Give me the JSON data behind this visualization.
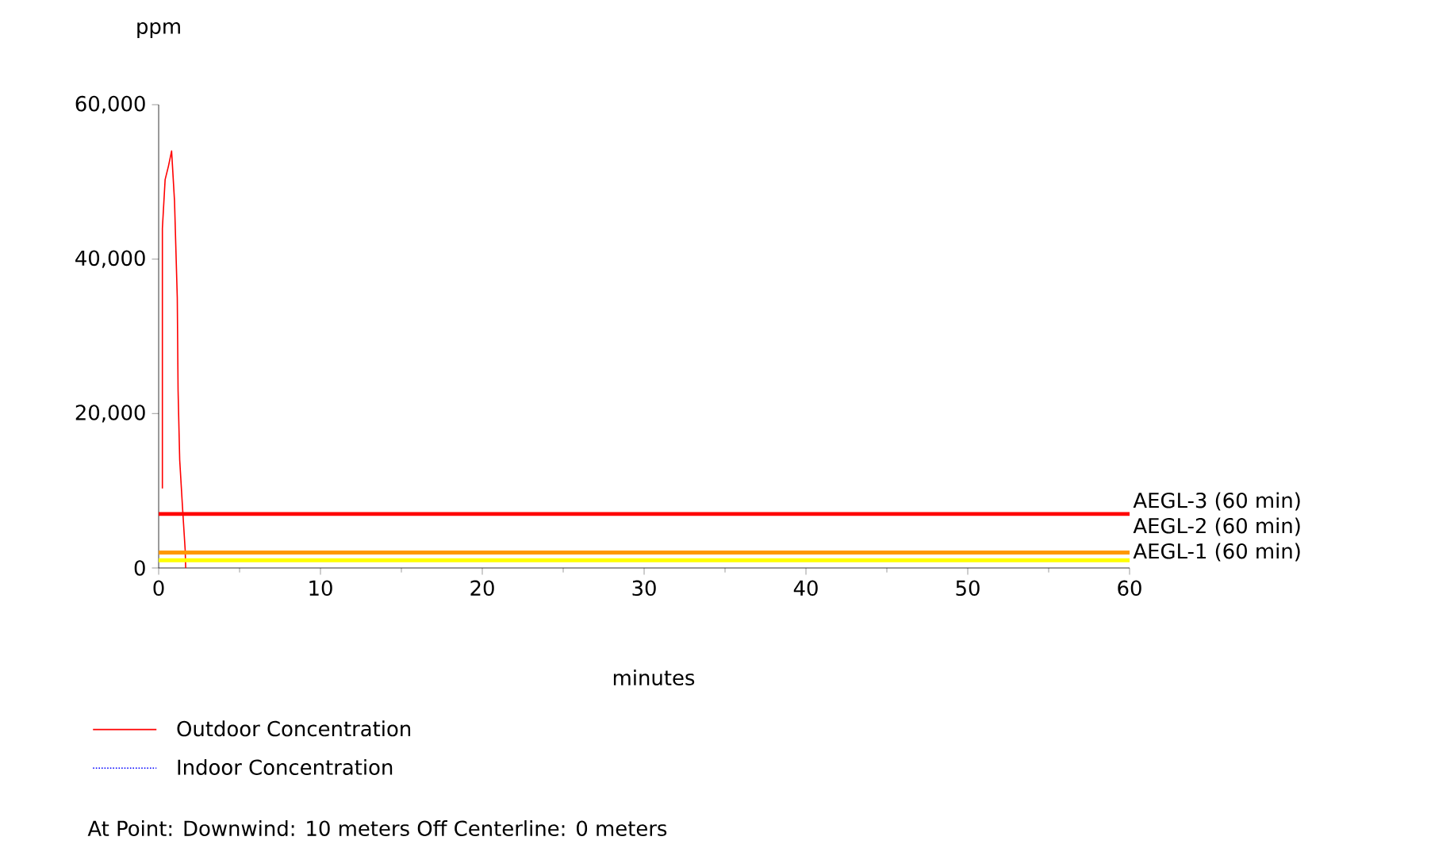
{
  "chart_data": {
    "type": "line",
    "xlabel": "minutes",
    "ylabel": "ppm",
    "xlim": [
      0,
      60
    ],
    "xticks": [
      0,
      10,
      20,
      30,
      40,
      50,
      60
    ],
    "ylim": [
      0,
      60000
    ],
    "yticks": [
      {
        "value": 0,
        "label": "0"
      },
      {
        "value": 20000,
        "label": "20,000"
      },
      {
        "value": 40000,
        "label": "40,000"
      },
      {
        "value": 60000,
        "label": "60,000"
      }
    ],
    "series": [
      {
        "name": "Outdoor Concentration",
        "color": "#ff0000",
        "line_style": "solid",
        "x": [
          0.23,
          0.23,
          0.4,
          0.6,
          0.8,
          0.98,
          1.15,
          1.2,
          1.3,
          1.47,
          1.64,
          1.67
        ],
        "values": [
          10300,
          44000,
          50300,
          52000,
          54000,
          47500,
          35000,
          23000,
          14000,
          8000,
          2300,
          0
        ]
      },
      {
        "name": "Indoor Concentration",
        "color": "#0000ff",
        "line_style": "dotted"
      }
    ],
    "ref_lines": [
      {
        "axis": "y",
        "value": 7000,
        "label": "AEGL-3 (60 min)",
        "color": "#ff0000"
      },
      {
        "axis": "y",
        "value": 2000,
        "label": "AEGL-2 (60 min)",
        "color": "#ff9900"
      },
      {
        "axis": "y",
        "value": 1000,
        "label": "AEGL-1 (60 min)",
        "color": "#ffff00"
      }
    ],
    "legend": "bottom",
    "grid": false,
    "marker": "none",
    "annotations": [
      "At Point: Downwind: 10 meters Off Centerline: 0 meters"
    ]
  }
}
